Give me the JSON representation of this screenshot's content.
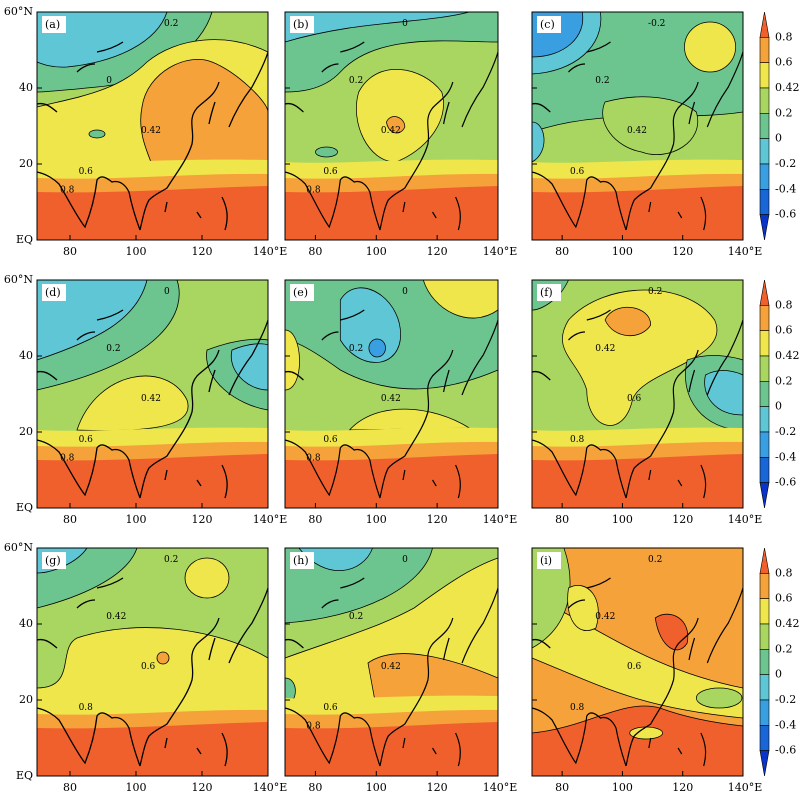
{
  "panels": [
    {
      "label": "(a)",
      "contour_labels": [
        "0.2",
        "0",
        "0.42",
        "0.6",
        "0.8"
      ]
    },
    {
      "label": "(b)",
      "contour_labels": [
        "0",
        "0.2",
        "0.42",
        "0.6",
        "0.8"
      ]
    },
    {
      "label": "(c)",
      "contour_labels": [
        "-0.2",
        "0.2",
        "0.42",
        "0.6"
      ]
    },
    {
      "label": "(d)",
      "contour_labels": [
        "0",
        "0.2",
        "0.42",
        "0.6",
        "0.8"
      ]
    },
    {
      "label": "(e)",
      "contour_labels": [
        "0",
        "0.2",
        "0.42",
        "0.6",
        "0.8"
      ]
    },
    {
      "label": "(f)",
      "contour_labels": [
        "0.2",
        "0.42",
        "0.6",
        "0.8"
      ]
    },
    {
      "label": "(g)",
      "contour_labels": [
        "0.2",
        "0.42",
        "0.6",
        "0.8"
      ]
    },
    {
      "label": "(h)",
      "contour_labels": [
        "0",
        "0.2",
        "0.42",
        "0.6",
        "0.8"
      ]
    },
    {
      "label": "(i)",
      "contour_labels": [
        "0.2",
        "0.42",
        "0.6",
        "0.8"
      ]
    }
  ],
  "y_axis_labels": [
    "60°N",
    "40",
    "20",
    "EQ"
  ],
  "x_axis_labels": [
    "80",
    "100",
    "120",
    "140°E"
  ],
  "colorbar_labels": [
    "0.8",
    "0.6",
    "0.42",
    "0.2",
    "0",
    "-0.2",
    "-0.4",
    "-0.6"
  ]
}
